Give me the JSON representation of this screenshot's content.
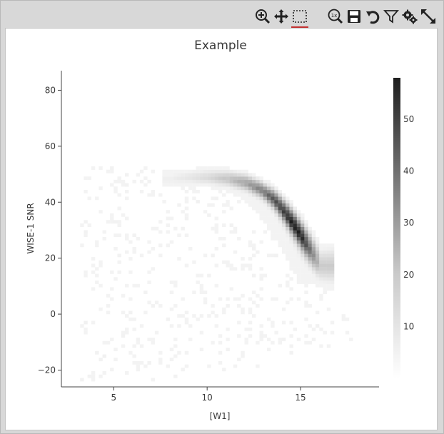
{
  "toolbar": {
    "buttons": [
      {
        "name": "zoom-in-icon",
        "title": "Zoom"
      },
      {
        "name": "pan-icon",
        "title": "Pan"
      },
      {
        "name": "select-box-icon",
        "title": "Select",
        "active": true
      },
      {
        "name": "zoom-reset-icon",
        "title": "Reset zoom"
      },
      {
        "name": "save-icon",
        "title": "Save"
      },
      {
        "name": "restore-icon",
        "title": "Restore"
      },
      {
        "name": "filter-icon",
        "title": "Filter"
      },
      {
        "name": "settings-icon",
        "title": "Settings"
      },
      {
        "name": "expand-icon",
        "title": "Expand"
      }
    ],
    "active_color": "#c23030"
  },
  "chart_data": {
    "type": "heatmap",
    "title": "Example",
    "xlabel": "[W1]",
    "ylabel": "WISE-1 SNR",
    "xlim": [
      2.2,
      19.2
    ],
    "ylim": [
      -26,
      87
    ],
    "xticks": [
      5,
      10,
      15
    ],
    "yticks": [
      -20,
      0,
      20,
      40,
      60,
      80
    ],
    "colorbar": {
      "range": [
        0,
        58
      ],
      "ticks": [
        10,
        20,
        30,
        40,
        50
      ],
      "colors": [
        "#ffffff",
        "#1e1e1e"
      ]
    },
    "density_ridge": [
      {
        "x": 8.0,
        "y": 48.0,
        "count": 4
      },
      {
        "x": 9.0,
        "y": 48.5,
        "count": 6
      },
      {
        "x": 10.0,
        "y": 48.5,
        "count": 9
      },
      {
        "x": 11.0,
        "y": 48.0,
        "count": 14
      },
      {
        "x": 12.0,
        "y": 46.5,
        "count": 22
      },
      {
        "x": 12.8,
        "y": 44.0,
        "count": 30
      },
      {
        "x": 13.5,
        "y": 40.5,
        "count": 40
      },
      {
        "x": 14.0,
        "y": 36.5,
        "count": 46
      },
      {
        "x": 14.5,
        "y": 32.0,
        "count": 55
      },
      {
        "x": 15.0,
        "y": 27.0,
        "count": 50
      },
      {
        "x": 15.5,
        "y": 22.0,
        "count": 30
      },
      {
        "x": 16.0,
        "y": 17.0,
        "count": 12
      }
    ]
  }
}
